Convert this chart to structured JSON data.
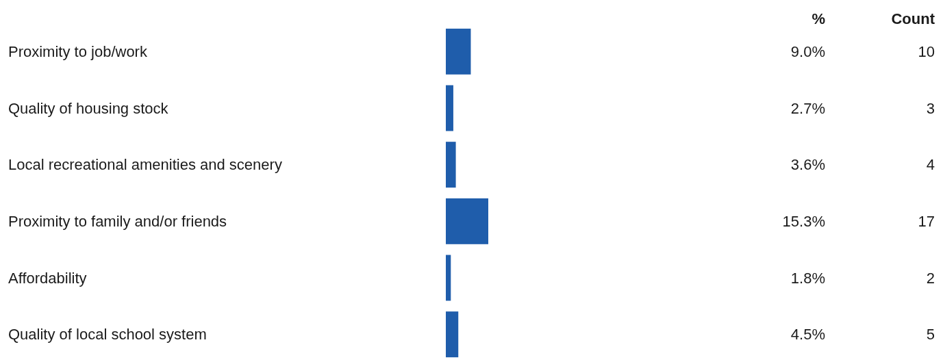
{
  "chart_data": {
    "type": "bar",
    "orientation": "horizontal",
    "categories": [
      "Proximity to job/work",
      "Quality of housing stock",
      "Local recreational amenities and scenery",
      "Proximity to family and/or friends",
      "Affordability",
      "Quality of local school system"
    ],
    "series": [
      {
        "color": "#1f5dab",
        "values": [
          9.0,
          2.7,
          3.6,
          15.3,
          1.8,
          4.5
        ],
        "value_labels": [
          "9.0%",
          "2.7%",
          "3.6%",
          "15.3%",
          "1.8%",
          "4.5%"
        ]
      }
    ],
    "tick_labels": "y",
    "annotations": [
      "%",
      "Count",
      "10",
      "3",
      "4",
      "17",
      "2",
      "5"
    ]
  }
}
